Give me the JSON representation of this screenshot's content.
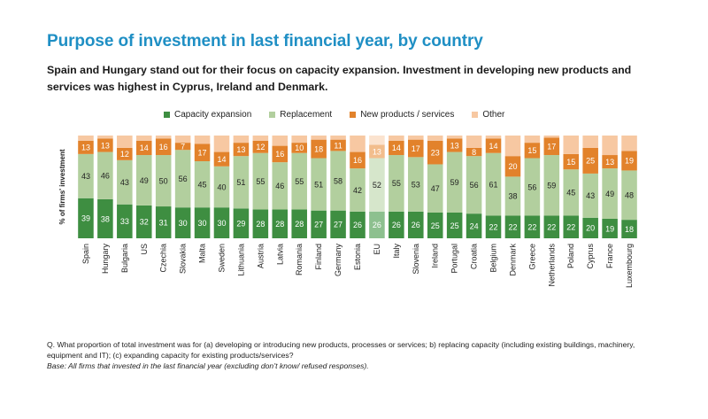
{
  "title": "Purpose of investment in last financial year, by country",
  "subtitle": "Spain and Hungary stand out for their focus on capacity expansion. Investment in developing new products and services was highest in Cyprus, Ireland and Denmark.",
  "footnote": {
    "question": "Q. What proportion of total investment was for (a) developing or introducing new products, processes or services; b) replacing capacity (including existing buildings, machinery, equipment and IT); (c) expanding capacity for existing products/services?",
    "base": "Base: All firms that invested in the last financial year (excluding don’t know/ refused responses)."
  },
  "colors": {
    "capacity_expansion": "#3e8e41",
    "replacement": "#b2cf9e",
    "new_products": "#e2822b",
    "other": "#f7c8a2",
    "eu_capacity_expansion": "#8dc08f",
    "eu_replacement": "#d6e6cb",
    "eu_new_products": "#f2bd8c",
    "eu_other": "#fbe3cf"
  },
  "chart_data": {
    "type": "bar",
    "stacked": true,
    "percent_scale": true,
    "ylabel": "% of firms' investment",
    "ylim": [
      0,
      100
    ],
    "grid": false,
    "legend_position": "top",
    "highlight_category": "EU",
    "categories": [
      "Spain",
      "Hungary",
      "Bulgaria",
      "US",
      "Czechia",
      "Slovakia",
      "Malta",
      "Sweden",
      "Lithuania",
      "Austria",
      "Latvia",
      "Romania",
      "Finland",
      "Germany",
      "Estonia",
      "EU",
      "Italy",
      "Slovenia",
      "Ireland",
      "Portugal",
      "Croatia",
      "Belgium",
      "Denmark",
      "Greece",
      "Netherlands",
      "Poland",
      "Cyprus",
      "France",
      "Luxembourg"
    ],
    "series": [
      {
        "name": "Capacity expansion",
        "key": "capacity_expansion",
        "values": [
          39,
          38,
          33,
          32,
          31,
          30,
          30,
          30,
          29,
          28,
          28,
          28,
          27,
          27,
          26,
          26,
          26,
          26,
          25,
          25,
          24,
          22,
          22,
          22,
          22,
          22,
          20,
          19,
          18
        ]
      },
      {
        "name": "Replacement",
        "key": "replacement",
        "values": [
          43,
          46,
          43,
          49,
          50,
          56,
          45,
          40,
          51,
          55,
          46,
          55,
          51,
          58,
          42,
          52,
          55,
          53,
          47,
          59,
          56,
          61,
          38,
          56,
          59,
          45,
          43,
          49,
          48
        ]
      },
      {
        "name": "New products / services",
        "key": "new_products",
        "values": [
          13,
          13,
          12,
          14,
          16,
          7,
          17,
          14,
          13,
          12,
          16,
          10,
          18,
          11,
          16,
          13,
          14,
          17,
          23,
          13,
          8,
          14,
          20,
          15,
          17,
          15,
          25,
          13,
          19
        ]
      },
      {
        "name": "Other",
        "key": "other",
        "values": [
          5,
          3,
          12,
          5,
          3,
          7,
          8,
          16,
          7,
          5,
          10,
          7,
          4,
          4,
          16,
          9,
          5,
          4,
          5,
          3,
          12,
          3,
          20,
          7,
          2,
          18,
          12,
          19,
          15
        ]
      }
    ]
  }
}
